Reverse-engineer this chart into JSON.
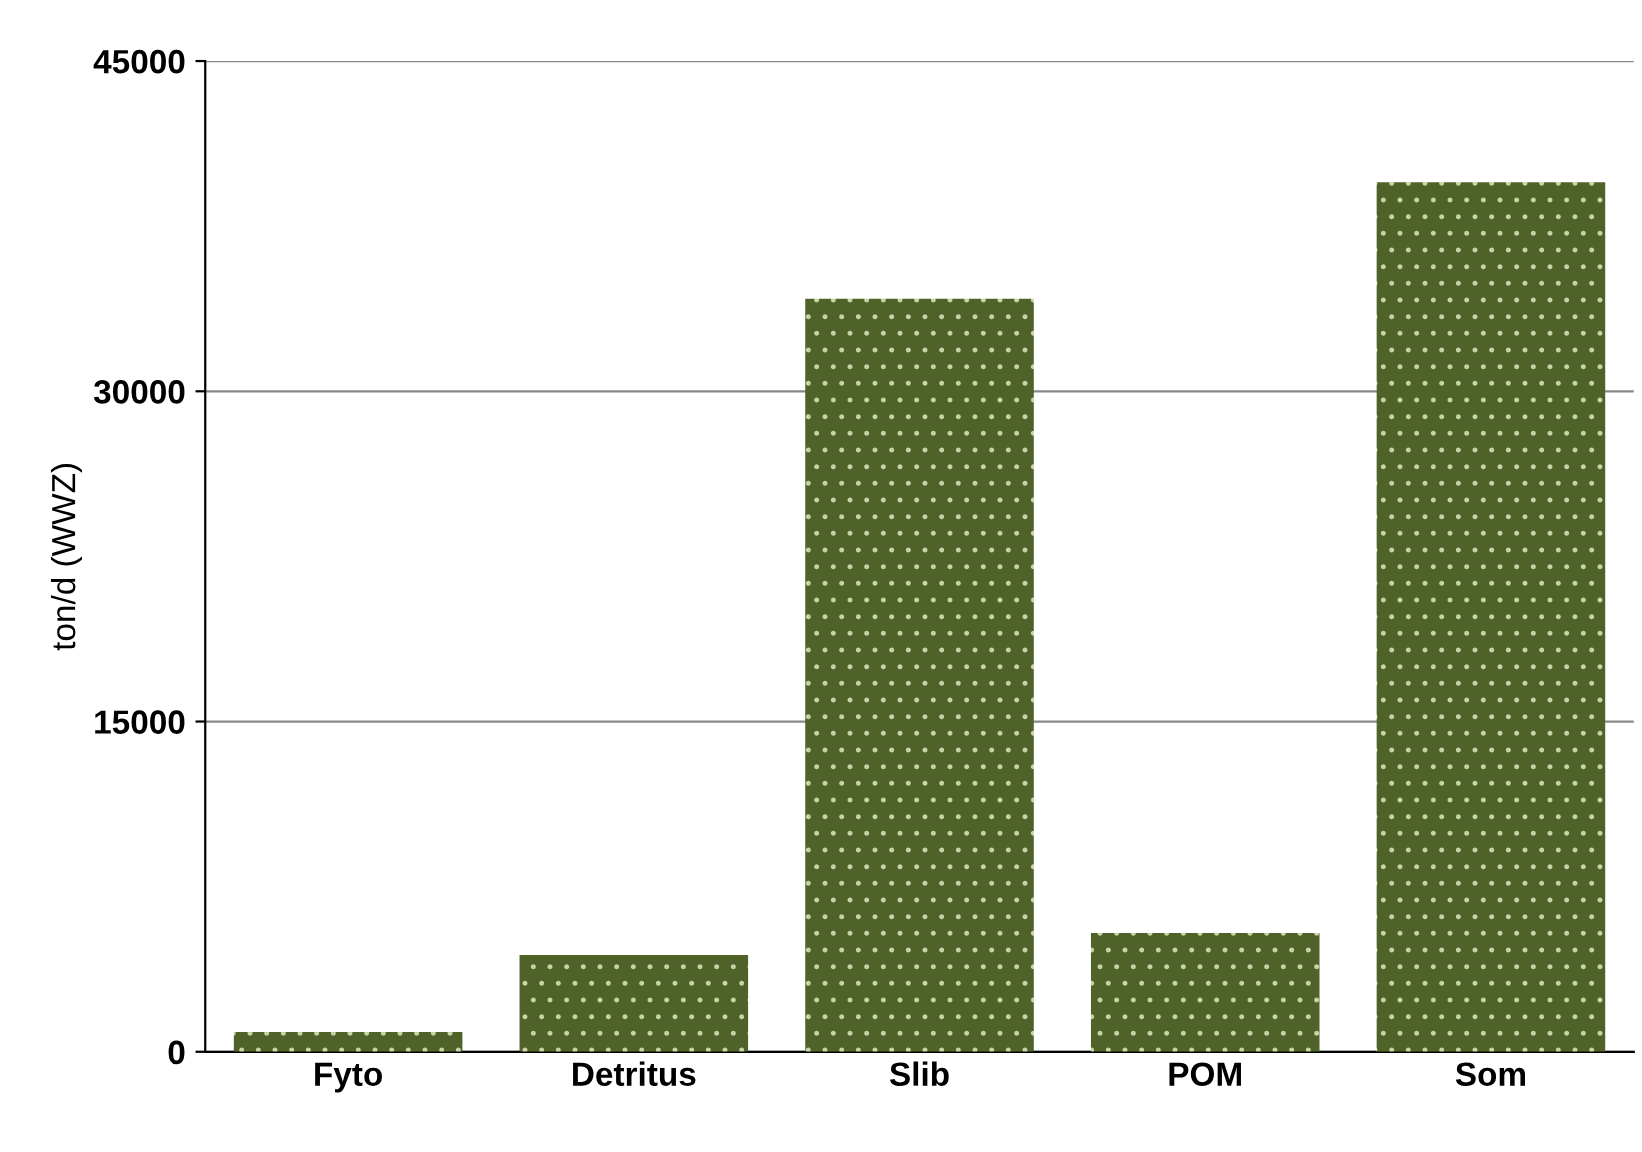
{
  "chart_data": {
    "type": "bar",
    "ylabel": "ton/d (WWZ)",
    "categories": [
      "Fyto",
      "Detritus",
      "Slib",
      "POM",
      "Som"
    ],
    "values": [
      900,
      4400,
      34200,
      5400,
      39500
    ],
    "color": "#4f6228",
    "ylim": [
      0,
      45000
    ],
    "yticks": [
      0,
      15000,
      30000,
      45000
    ],
    "grid": "y"
  }
}
